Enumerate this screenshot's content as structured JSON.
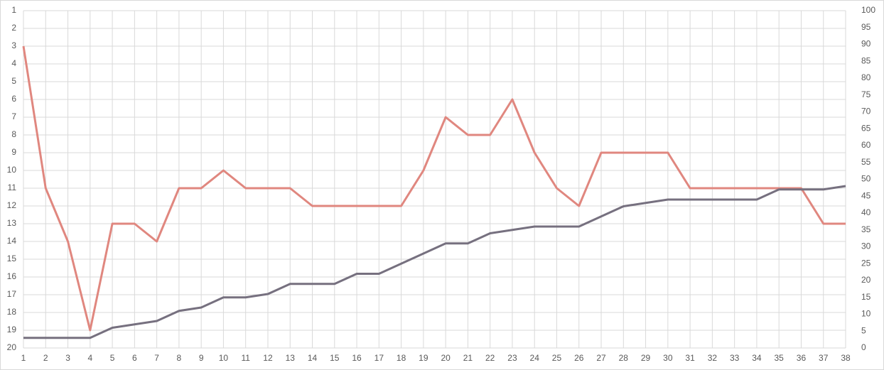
{
  "chart_data": {
    "type": "line",
    "categories": [
      "1",
      "2",
      "3",
      "4",
      "5",
      "6",
      "7",
      "8",
      "9",
      "10",
      "11",
      "12",
      "13",
      "14",
      "15",
      "16",
      "17",
      "18",
      "19",
      "20",
      "21",
      "22",
      "23",
      "24",
      "25",
      "26",
      "27",
      "28",
      "29",
      "30",
      "31",
      "32",
      "33",
      "34",
      "35",
      "36",
      "37",
      "38"
    ],
    "series": [
      {
        "color": "#e0877f",
        "values": [
          3,
          11,
          14,
          19,
          13,
          13,
          14,
          11,
          11,
          10,
          11,
          11,
          11,
          12,
          12,
          12,
          12,
          12,
          10,
          7,
          8,
          8,
          6,
          9,
          11,
          12,
          9,
          9,
          9,
          9,
          11,
          11,
          11,
          11,
          11,
          11,
          13,
          13
        ]
      },
      {
        "color": "#76707f",
        "axis": "y2",
        "values": [
          3,
          3,
          3,
          3,
          6,
          7,
          8,
          11,
          12,
          15,
          15,
          16,
          19,
          19,
          19,
          22,
          22,
          25,
          28,
          31,
          31,
          34,
          35,
          36,
          36,
          36,
          39,
          42,
          43,
          44,
          44,
          44,
          44,
          44,
          47,
          47,
          47,
          48
        ]
      }
    ],
    "ylim": [
      20,
      1
    ],
    "yticks": [
      1,
      2,
      3,
      4,
      5,
      6,
      7,
      8,
      9,
      10,
      11,
      12,
      13,
      14,
      15,
      16,
      17,
      18,
      19,
      20
    ],
    "y2lim": [
      0,
      100
    ],
    "y2ticks": [
      0,
      5,
      10,
      15,
      20,
      25,
      30,
      35,
      40,
      45,
      50,
      55,
      60,
      65,
      70,
      75,
      80,
      85,
      90,
      95,
      100
    ],
    "grid": true
  }
}
